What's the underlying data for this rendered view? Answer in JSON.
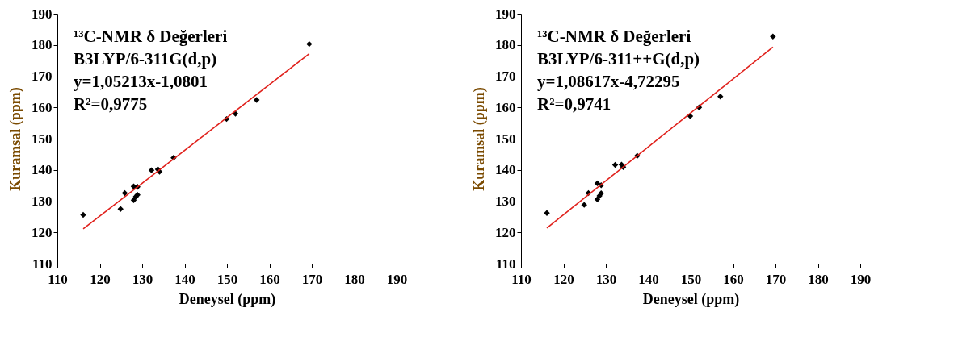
{
  "chart_data": [
    {
      "type": "scatter",
      "xlabel": "Deneysel (ppm)",
      "ylabel": "Kuramsal (ppm)",
      "xlim": [
        110,
        190
      ],
      "ylim": [
        110,
        190
      ],
      "xticks": [
        110,
        120,
        130,
        140,
        150,
        160,
        170,
        180,
        190
      ],
      "yticks": [
        110,
        120,
        130,
        140,
        150,
        160,
        170,
        180,
        190
      ],
      "grid": false,
      "annotations": [
        "¹³C-NMR δ Değerleri",
        "B3LYP/6-311G(d,p)",
        "y=1,05213x-1,0801",
        "R²=0,9775"
      ],
      "series": [
        {
          "type": "scatter",
          "marker": "diamond",
          "color": "#000000",
          "x": [
            116.1,
            124.9,
            125.9,
            128.0,
            128.0,
            128.5,
            128.9,
            128.9,
            132.2,
            133.7,
            134.1,
            137.4,
            149.9,
            152.0,
            157.0,
            169.4
          ],
          "values": [
            125.6,
            127.5,
            132.6,
            134.7,
            130.3,
            131.4,
            132.0,
            134.6,
            139.9,
            140.2,
            139.4,
            143.9,
            156.3,
            158.0,
            162.4,
            180.3
          ]
        },
        {
          "type": "line",
          "color": "#e0201b",
          "x": [
            116.1,
            169.4
          ],
          "values": [
            121.1,
            177.2
          ]
        }
      ]
    },
    {
      "type": "scatter",
      "xlabel": "Deneysel (ppm)",
      "ylabel": "Kuramsal (ppm)",
      "xlim": [
        110,
        190
      ],
      "ylim": [
        110,
        190
      ],
      "xticks": [
        110,
        120,
        130,
        140,
        150,
        160,
        170,
        180,
        190
      ],
      "yticks": [
        110,
        120,
        130,
        140,
        150,
        160,
        170,
        180,
        190
      ],
      "grid": false,
      "annotations": [
        "¹³C-NMR δ Değerleri",
        "B3LYP/6-311++G(d,p)",
        "y=1,08617x-4,72295",
        "R²=0,9741"
      ],
      "series": [
        {
          "type": "scatter",
          "marker": "diamond",
          "color": "#000000",
          "x": [
            116.1,
            124.9,
            125.9,
            128.0,
            128.0,
            128.5,
            128.9,
            128.9,
            132.2,
            133.7,
            134.1,
            137.4,
            149.9,
            152.0,
            157.0,
            169.4
          ],
          "values": [
            126.2,
            128.8,
            132.6,
            135.7,
            130.6,
            131.7,
            132.5,
            135.1,
            141.6,
            141.7,
            140.9,
            144.5,
            157.2,
            160.0,
            163.5,
            182.7
          ]
        },
        {
          "type": "line",
          "color": "#e0201b",
          "x": [
            116.1,
            169.4
          ],
          "values": [
            121.4,
            179.3
          ]
        }
      ]
    }
  ]
}
